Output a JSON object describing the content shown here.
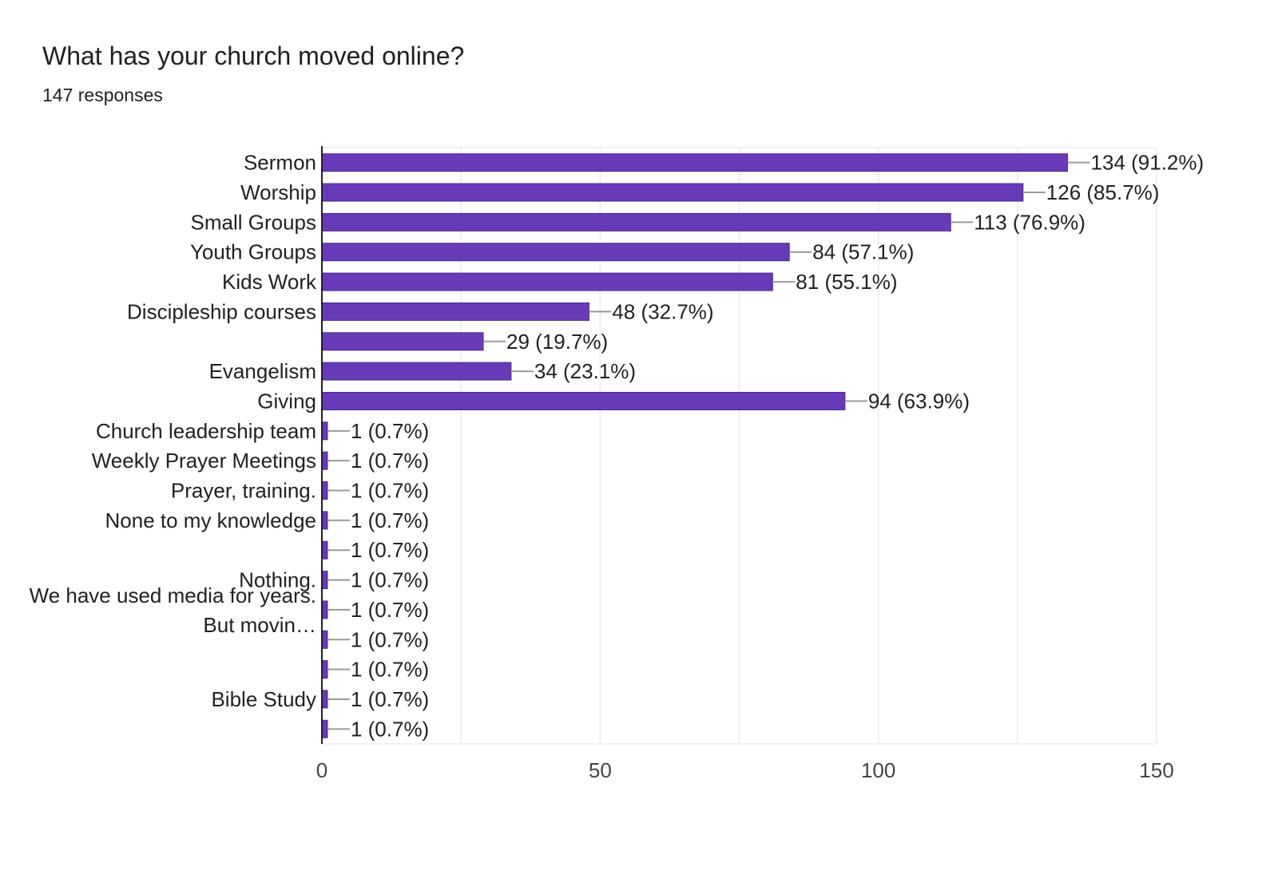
{
  "title": "What has your church moved online?",
  "subtitle": "147 responses",
  "chart_data": {
    "type": "bar",
    "orientation": "horizontal",
    "title": "What has your church moved online?",
    "subtitle": "147 responses",
    "bar_color": "#673ab7",
    "xlim": [
      0,
      150
    ],
    "x_ticks": [
      0,
      50,
      100,
      150
    ],
    "grid": true,
    "bars": [
      {
        "label": [
          "Sermon"
        ],
        "value": 134,
        "value_label": "134 (91.2%)"
      },
      {
        "label": [
          "Worship"
        ],
        "value": 126,
        "value_label": "126 (85.7%)"
      },
      {
        "label": [
          "Small Groups"
        ],
        "value": 113,
        "value_label": "113 (76.9%)"
      },
      {
        "label": [
          "Youth Groups"
        ],
        "value": 84,
        "value_label": "84 (57.1%)"
      },
      {
        "label": [
          "Kids Work"
        ],
        "value": 81,
        "value_label": "81 (55.1%)"
      },
      {
        "label": [
          "Discipleship courses"
        ],
        "value": 48,
        "value_label": "48 (32.7%)"
      },
      {
        "label": [],
        "value": 29,
        "value_label": "29 (19.7%)"
      },
      {
        "label": [
          "Evangelism"
        ],
        "value": 34,
        "value_label": "34 (23.1%)"
      },
      {
        "label": [
          "Giving"
        ],
        "value": 94,
        "value_label": "94 (63.9%)"
      },
      {
        "label": [
          "Church leadership team"
        ],
        "value": 1,
        "value_label": "1 (0.7%)"
      },
      {
        "label": [
          "Weekly Prayer Meetings"
        ],
        "value": 1,
        "value_label": "1 (0.7%)"
      },
      {
        "label": [
          "Prayer, training."
        ],
        "value": 1,
        "value_label": "1 (0.7%)"
      },
      {
        "label": [
          "None to my knowledge"
        ],
        "value": 1,
        "value_label": "1 (0.7%)"
      },
      {
        "label": [],
        "value": 1,
        "value_label": "1 (0.7%)"
      },
      {
        "label": [
          "Nothing."
        ],
        "value": 1,
        "value_label": "1 (0.7%)"
      },
      {
        "label": [
          "We have used media for years.",
          "But movin…"
        ],
        "value": 1,
        "value_label": "1 (0.7%)"
      },
      {
        "label": [],
        "value": 1,
        "value_label": "1 (0.7%)"
      },
      {
        "label": [],
        "value": 1,
        "value_label": "1 (0.7%)"
      },
      {
        "label": [
          "Bible Study"
        ],
        "value": 1,
        "value_label": "1 (0.7%)"
      },
      {
        "label": [],
        "value": 1,
        "value_label": "1 (0.7%)"
      }
    ]
  }
}
